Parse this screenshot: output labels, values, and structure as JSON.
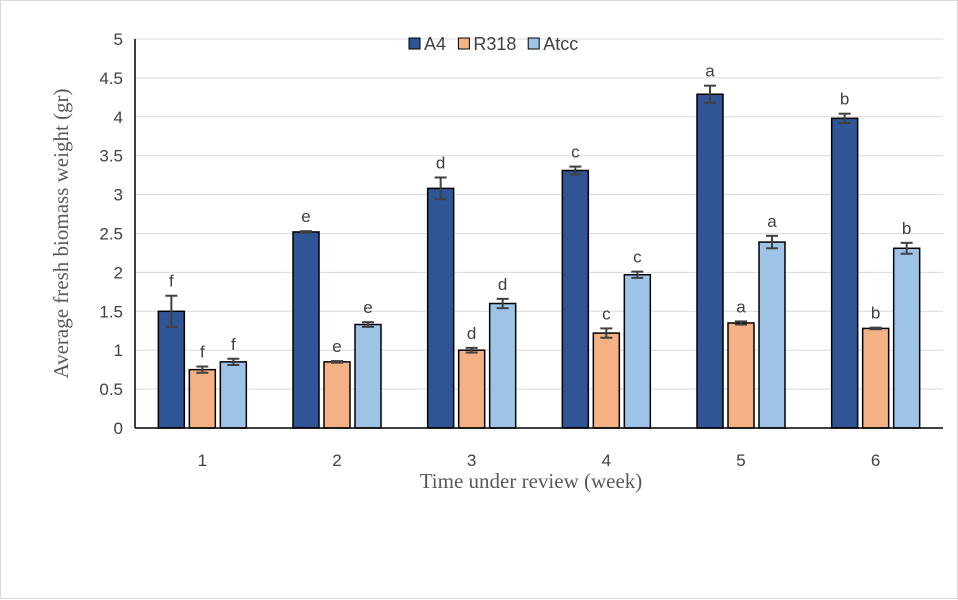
{
  "chart_data": {
    "type": "bar",
    "categories": [
      "1",
      "2",
      "3",
      "4",
      "5",
      "6"
    ],
    "xlabel": "Time under review (week)",
    "ylabel": "Average fresh biomass weight (gr)",
    "ylim": [
      0,
      5
    ],
    "yticks": [
      "0",
      "0.5",
      "1",
      "1.5",
      "2",
      "2.5",
      "3",
      "3.5",
      "4",
      "4.5",
      "5"
    ],
    "grid": true,
    "legend_position": "top-center",
    "series": [
      {
        "name": "A4",
        "color": "#2f5597",
        "values": [
          1.5,
          2.52,
          3.08,
          3.31,
          4.29,
          3.98
        ],
        "errors": [
          0.2,
          0.01,
          0.14,
          0.05,
          0.11,
          0.06
        ],
        "labels": [
          "f",
          "e",
          "d",
          "c",
          "a",
          "b"
        ]
      },
      {
        "name": "R318",
        "color": "#f4b183",
        "values": [
          0.75,
          0.85,
          1.0,
          1.22,
          1.35,
          1.28
        ],
        "errors": [
          0.04,
          0.01,
          0.03,
          0.06,
          0.02,
          0.01
        ],
        "labels": [
          "f",
          "e",
          "d",
          "c",
          "a",
          "b"
        ]
      },
      {
        "name": "Atcc",
        "color": "#9dc3e6",
        "values": [
          0.85,
          1.33,
          1.6,
          1.97,
          2.39,
          2.31
        ],
        "errors": [
          0.04,
          0.03,
          0.06,
          0.04,
          0.08,
          0.07
        ],
        "labels": [
          "f",
          "e",
          "d",
          "c",
          "a",
          "b"
        ]
      }
    ]
  }
}
